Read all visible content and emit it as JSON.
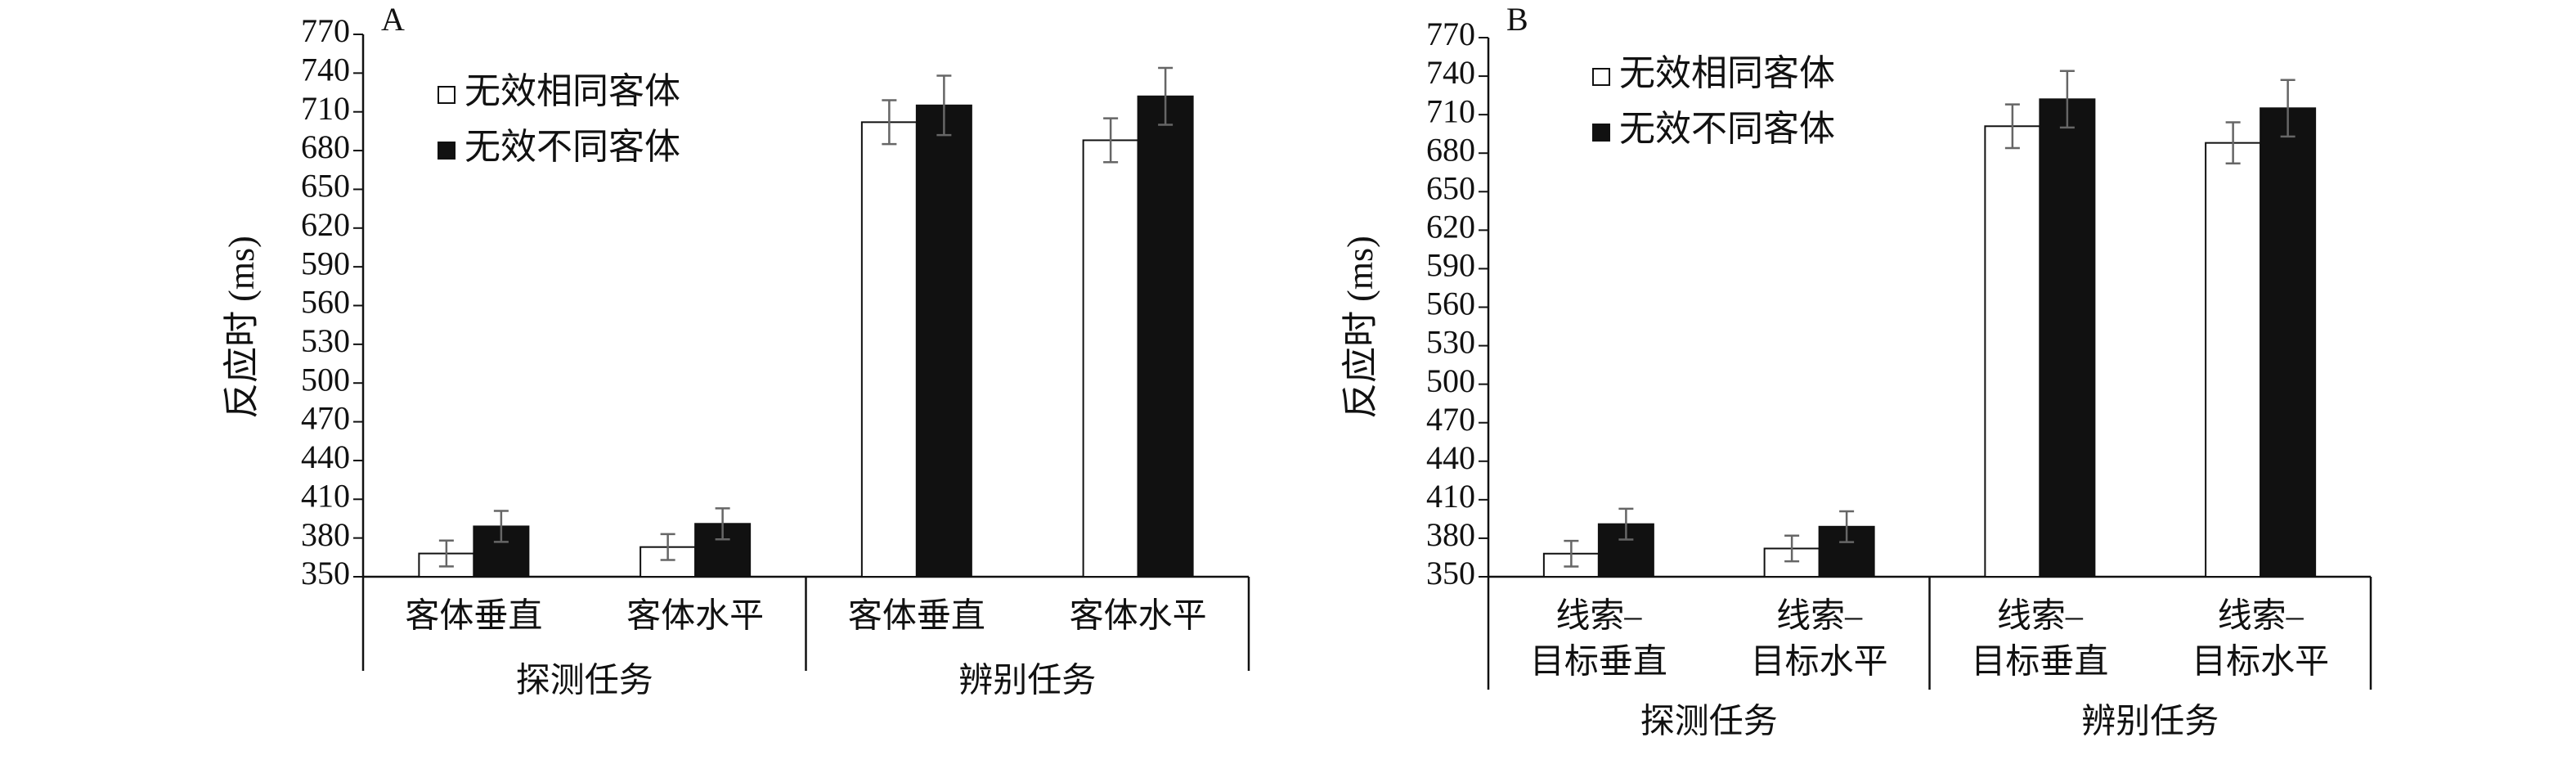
{
  "chart_data": [
    {
      "type": "bar",
      "panel_label": "A",
      "ylabel": "反应时 (ms)",
      "categories": [
        "客体垂直",
        "客体水平",
        "客体垂直",
        "客体水平"
      ],
      "groups": [
        "探测任务",
        "辨别任务"
      ],
      "series": [
        {
          "name": "无效相同客体",
          "color": "#ffffff",
          "values": [
            368,
            373,
            702,
            688
          ],
          "errors": [
            10,
            10,
            17,
            17
          ]
        },
        {
          "name": "无效不同客体",
          "color": "#111111",
          "values": [
            389,
            391,
            715,
            722
          ],
          "errors": [
            12,
            12,
            23,
            22
          ]
        }
      ],
      "ylim": [
        350,
        770
      ],
      "yticks": [
        350,
        380,
        410,
        440,
        470,
        500,
        530,
        560,
        590,
        620,
        650,
        680,
        710,
        740,
        770
      ],
      "legend": "upper left"
    },
    {
      "type": "bar",
      "panel_label": "B",
      "ylabel": "反应时 (ms)",
      "categories": [
        [
          "线索–",
          "目标垂直"
        ],
        [
          "线索–",
          "目标水平"
        ],
        [
          "线索–",
          "目标垂直"
        ],
        [
          "线索–",
          "目标水平"
        ]
      ],
      "groups": [
        "探测任务",
        "辨别任务"
      ],
      "series": [
        {
          "name": "无效相同客体",
          "color": "#ffffff",
          "values": [
            368,
            372,
            701,
            688
          ],
          "errors": [
            10,
            10,
            17,
            16
          ]
        },
        {
          "name": "无效不同客体",
          "color": "#111111",
          "values": [
            391,
            389,
            722,
            715
          ],
          "errors": [
            12,
            12,
            22,
            22
          ]
        }
      ],
      "ylim": [
        350,
        770
      ],
      "yticks": [
        350,
        380,
        410,
        440,
        470,
        500,
        530,
        560,
        590,
        620,
        650,
        680,
        710,
        740,
        770
      ],
      "legend": "upper left"
    }
  ]
}
